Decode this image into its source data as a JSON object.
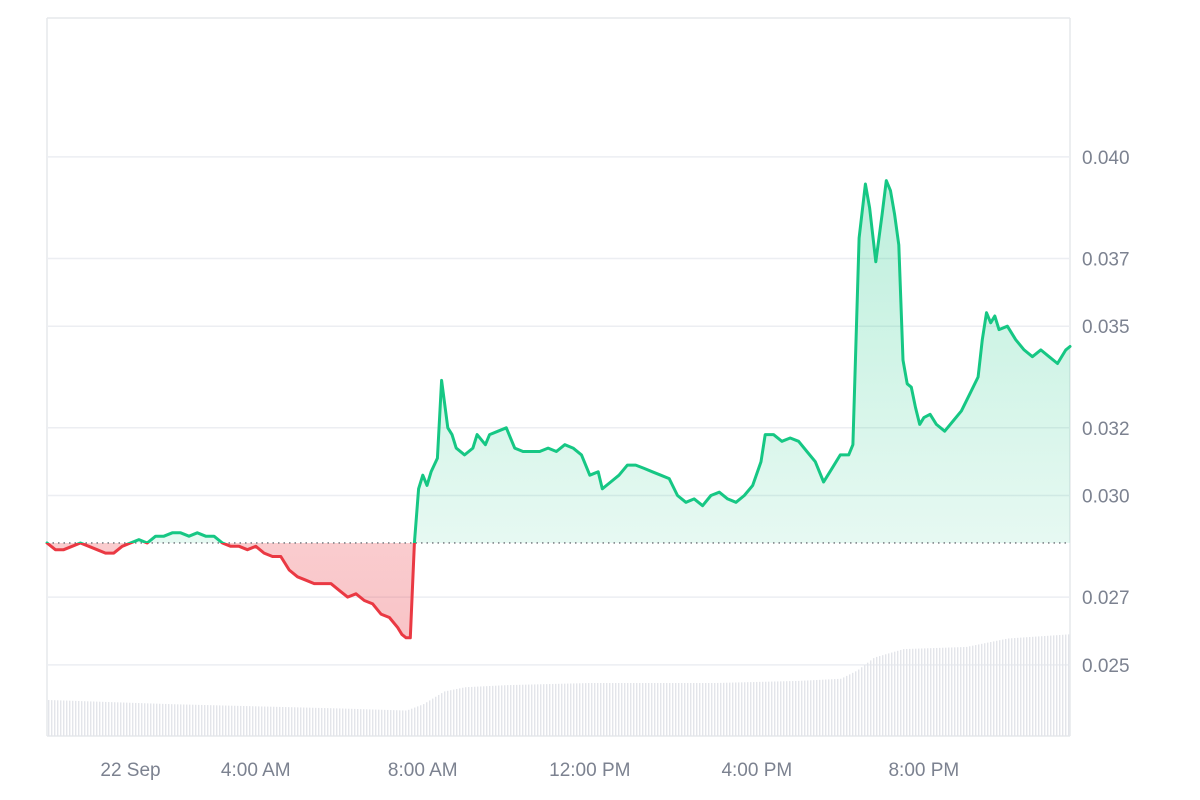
{
  "chart_data": {
    "type": "area",
    "y_axis_side": "right",
    "ylim": [
      0.0229,
      0.0441
    ],
    "y_ticks": [
      {
        "value": 0.025,
        "label": "0.025"
      },
      {
        "value": 0.027,
        "label": "0.027"
      },
      {
        "value": 0.03,
        "label": "0.030"
      },
      {
        "value": 0.032,
        "label": "0.032"
      },
      {
        "value": 0.035,
        "label": "0.035"
      },
      {
        "value": 0.037,
        "label": "0.037"
      },
      {
        "value": 0.04,
        "label": "0.040"
      }
    ],
    "x_ticks": [
      {
        "t": 1.0,
        "label": "22 Sep"
      },
      {
        "t": 4.0,
        "label": "4:00 AM"
      },
      {
        "t": 8.0,
        "label": "8:00 AM"
      },
      {
        "t": 12.0,
        "label": "12:00 PM"
      },
      {
        "t": 16.0,
        "label": "4:00 PM"
      },
      {
        "t": 20.0,
        "label": "8:00 PM"
      }
    ],
    "x_unit": "hour of day",
    "xlim": [
      -1.0,
      23.5
    ],
    "baseline": 0.0286,
    "colors": {
      "up_line": "#16c784",
      "down_line": "#ea3943",
      "up_fill_top": "#16c784",
      "down_fill": "#ea3943",
      "grid": "#eceef2",
      "baseline": "#6b6f76",
      "volume": "#e3e5ea"
    },
    "series": [
      {
        "values": [
          [
            -1.0,
            0.0286
          ],
          [
            -0.8,
            0.0284
          ],
          [
            -0.6,
            0.0284
          ],
          [
            -0.4,
            0.0285
          ],
          [
            -0.2,
            0.0286
          ],
          [
            0.0,
            0.0285
          ],
          [
            0.2,
            0.0284
          ],
          [
            0.4,
            0.0283
          ],
          [
            0.6,
            0.0283
          ],
          [
            0.8,
            0.0285
          ],
          [
            1.0,
            0.0286
          ],
          [
            1.2,
            0.0287
          ],
          [
            1.4,
            0.0286
          ],
          [
            1.6,
            0.0288
          ],
          [
            1.8,
            0.0288
          ],
          [
            2.0,
            0.0289
          ],
          [
            2.2,
            0.0289
          ],
          [
            2.4,
            0.0288
          ],
          [
            2.6,
            0.0289
          ],
          [
            2.8,
            0.0288
          ],
          [
            3.0,
            0.0288
          ],
          [
            3.2,
            0.0286
          ],
          [
            3.4,
            0.0285
          ],
          [
            3.6,
            0.0285
          ],
          [
            3.8,
            0.0284
          ],
          [
            4.0,
            0.0285
          ],
          [
            4.2,
            0.0283
          ],
          [
            4.4,
            0.0282
          ],
          [
            4.6,
            0.0282
          ],
          [
            4.8,
            0.0278
          ],
          [
            5.0,
            0.0276
          ],
          [
            5.2,
            0.0275
          ],
          [
            5.4,
            0.0274
          ],
          [
            5.6,
            0.0274
          ],
          [
            5.8,
            0.0274
          ],
          [
            6.0,
            0.0272
          ],
          [
            6.2,
            0.027
          ],
          [
            6.4,
            0.0271
          ],
          [
            6.6,
            0.0269
          ],
          [
            6.8,
            0.0268
          ],
          [
            7.0,
            0.0265
          ],
          [
            7.2,
            0.0264
          ],
          [
            7.4,
            0.0261
          ],
          [
            7.5,
            0.0259
          ],
          [
            7.6,
            0.0258
          ],
          [
            7.7,
            0.0258
          ],
          [
            7.8,
            0.0286
          ],
          [
            7.9,
            0.0302
          ],
          [
            8.0,
            0.0306
          ],
          [
            8.1,
            0.0303
          ],
          [
            8.2,
            0.0307
          ],
          [
            8.35,
            0.0311
          ],
          [
            8.45,
            0.0334
          ],
          [
            8.6,
            0.032
          ],
          [
            8.7,
            0.0318
          ],
          [
            8.8,
            0.0314
          ],
          [
            9.0,
            0.0312
          ],
          [
            9.2,
            0.0314
          ],
          [
            9.3,
            0.0318
          ],
          [
            9.5,
            0.0315
          ],
          [
            9.6,
            0.0318
          ],
          [
            9.8,
            0.0319
          ],
          [
            10.0,
            0.032
          ],
          [
            10.2,
            0.0314
          ],
          [
            10.4,
            0.0313
          ],
          [
            10.6,
            0.0313
          ],
          [
            10.8,
            0.0313
          ],
          [
            11.0,
            0.0314
          ],
          [
            11.2,
            0.0313
          ],
          [
            11.4,
            0.0315
          ],
          [
            11.6,
            0.0314
          ],
          [
            11.8,
            0.0312
          ],
          [
            12.0,
            0.0306
          ],
          [
            12.2,
            0.0307
          ],
          [
            12.3,
            0.0302
          ],
          [
            12.5,
            0.0304
          ],
          [
            12.7,
            0.0306
          ],
          [
            12.9,
            0.0309
          ],
          [
            13.1,
            0.0309
          ],
          [
            13.3,
            0.0308
          ],
          [
            13.5,
            0.0307
          ],
          [
            13.7,
            0.0306
          ],
          [
            13.9,
            0.0305
          ],
          [
            14.1,
            0.03
          ],
          [
            14.3,
            0.0298
          ],
          [
            14.5,
            0.0299
          ],
          [
            14.7,
            0.0297
          ],
          [
            14.9,
            0.03
          ],
          [
            15.1,
            0.0301
          ],
          [
            15.3,
            0.0299
          ],
          [
            15.5,
            0.0298
          ],
          [
            15.7,
            0.03
          ],
          [
            15.9,
            0.0303
          ],
          [
            16.1,
            0.031
          ],
          [
            16.2,
            0.0318
          ],
          [
            16.4,
            0.0318
          ],
          [
            16.6,
            0.0316
          ],
          [
            16.8,
            0.0317
          ],
          [
            17.0,
            0.0316
          ],
          [
            17.2,
            0.0313
          ],
          [
            17.4,
            0.031
          ],
          [
            17.6,
            0.0304
          ],
          [
            17.8,
            0.0308
          ],
          [
            18.0,
            0.0312
          ],
          [
            18.2,
            0.0312
          ],
          [
            18.3,
            0.0315
          ],
          [
            18.45,
            0.0376
          ],
          [
            18.6,
            0.0392
          ],
          [
            18.7,
            0.0385
          ],
          [
            18.85,
            0.0369
          ],
          [
            19.0,
            0.0383
          ],
          [
            19.1,
            0.0393
          ],
          [
            19.2,
            0.039
          ],
          [
            19.3,
            0.0383
          ],
          [
            19.4,
            0.0374
          ],
          [
            19.5,
            0.034
          ],
          [
            19.6,
            0.0333
          ],
          [
            19.7,
            0.0332
          ],
          [
            19.8,
            0.0326
          ],
          [
            19.9,
            0.0321
          ],
          [
            20.0,
            0.0323
          ],
          [
            20.15,
            0.0324
          ],
          [
            20.3,
            0.0321
          ],
          [
            20.5,
            0.0319
          ],
          [
            20.7,
            0.0322
          ],
          [
            20.9,
            0.0325
          ],
          [
            21.1,
            0.033
          ],
          [
            21.3,
            0.0335
          ],
          [
            21.4,
            0.0346
          ],
          [
            21.5,
            0.0354
          ],
          [
            21.6,
            0.0351
          ],
          [
            21.7,
            0.0353
          ],
          [
            21.8,
            0.0349
          ],
          [
            22.0,
            0.035
          ],
          [
            22.2,
            0.0346
          ],
          [
            22.4,
            0.0343
          ],
          [
            22.6,
            0.0341
          ],
          [
            22.8,
            0.0343
          ],
          [
            23.0,
            0.0341
          ],
          [
            23.2,
            0.0339
          ],
          [
            23.4,
            0.0343
          ],
          [
            23.5,
            0.0344
          ]
        ]
      }
    ]
  },
  "volume_profile": {
    "note": "relative volume bars along the bottom of the chart",
    "levels": [
      [
        -1.0,
        0.34
      ],
      [
        2.0,
        0.3
      ],
      [
        4.0,
        0.28
      ],
      [
        6.0,
        0.26
      ],
      [
        7.6,
        0.24
      ],
      [
        8.0,
        0.3
      ],
      [
        8.5,
        0.42
      ],
      [
        9.0,
        0.46
      ],
      [
        10.0,
        0.48
      ],
      [
        12.0,
        0.5
      ],
      [
        15.0,
        0.5
      ],
      [
        17.0,
        0.52
      ],
      [
        18.0,
        0.54
      ],
      [
        18.4,
        0.62
      ],
      [
        18.8,
        0.74
      ],
      [
        19.5,
        0.82
      ],
      [
        21.0,
        0.84
      ],
      [
        22.0,
        0.92
      ],
      [
        23.5,
        0.96
      ]
    ]
  }
}
